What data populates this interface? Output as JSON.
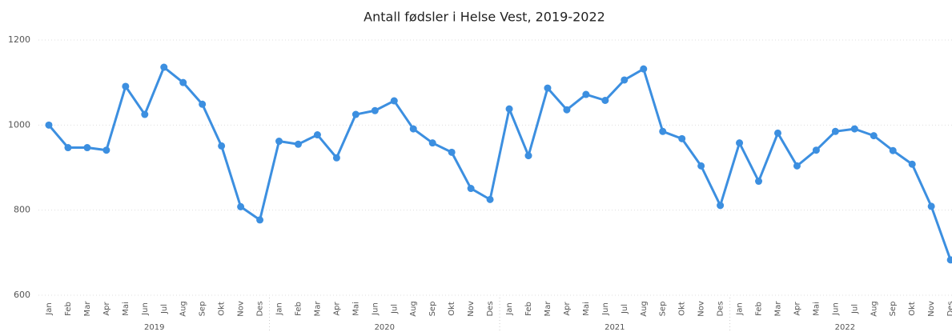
{
  "chart_data": {
    "type": "line",
    "title": "Antall fødsler i Helse Vest, 2019-2022",
    "categories": [
      "Jan",
      "Feb",
      "Mar",
      "Apr",
      "Mai",
      "Jun",
      "Jul",
      "Aug",
      "Sep",
      "Okt",
      "Nov",
      "Des",
      "Jan",
      "Feb",
      "Mar",
      "Apr",
      "Mai",
      "Jun",
      "Jul",
      "Aug",
      "Sep",
      "Okt",
      "Nov",
      "Des",
      "Jan",
      "Feb",
      "Mar",
      "Apr",
      "Mai",
      "Jun",
      "Jul",
      "Aug",
      "Sep",
      "Okt",
      "Nov",
      "Des",
      "Jan",
      "Feb",
      "Mar",
      "Apr",
      "Mai",
      "Jun",
      "Jul",
      "Aug",
      "Sep",
      "Okt",
      "Nov",
      "Des"
    ],
    "category_groups": [
      "2019",
      "2020",
      "2021",
      "2022"
    ],
    "values": [
      1000,
      947,
      947,
      941,
      1091,
      1025,
      1136,
      1100,
      1049,
      951,
      808,
      777,
      962,
      955,
      977,
      923,
      1025,
      1034,
      1057,
      991,
      958,
      936,
      851,
      825,
      1038,
      928,
      1087,
      1036,
      1072,
      1058,
      1106,
      1132,
      985,
      968,
      904,
      811,
      958,
      868,
      981,
      904,
      941,
      985,
      991,
      975,
      940,
      908,
      809,
      683
    ],
    "color": "#3c8fe0",
    "ylim": [
      600,
      1200
    ],
    "yticks": [
      600,
      800,
      1000,
      1200
    ],
    "grid": true
  }
}
